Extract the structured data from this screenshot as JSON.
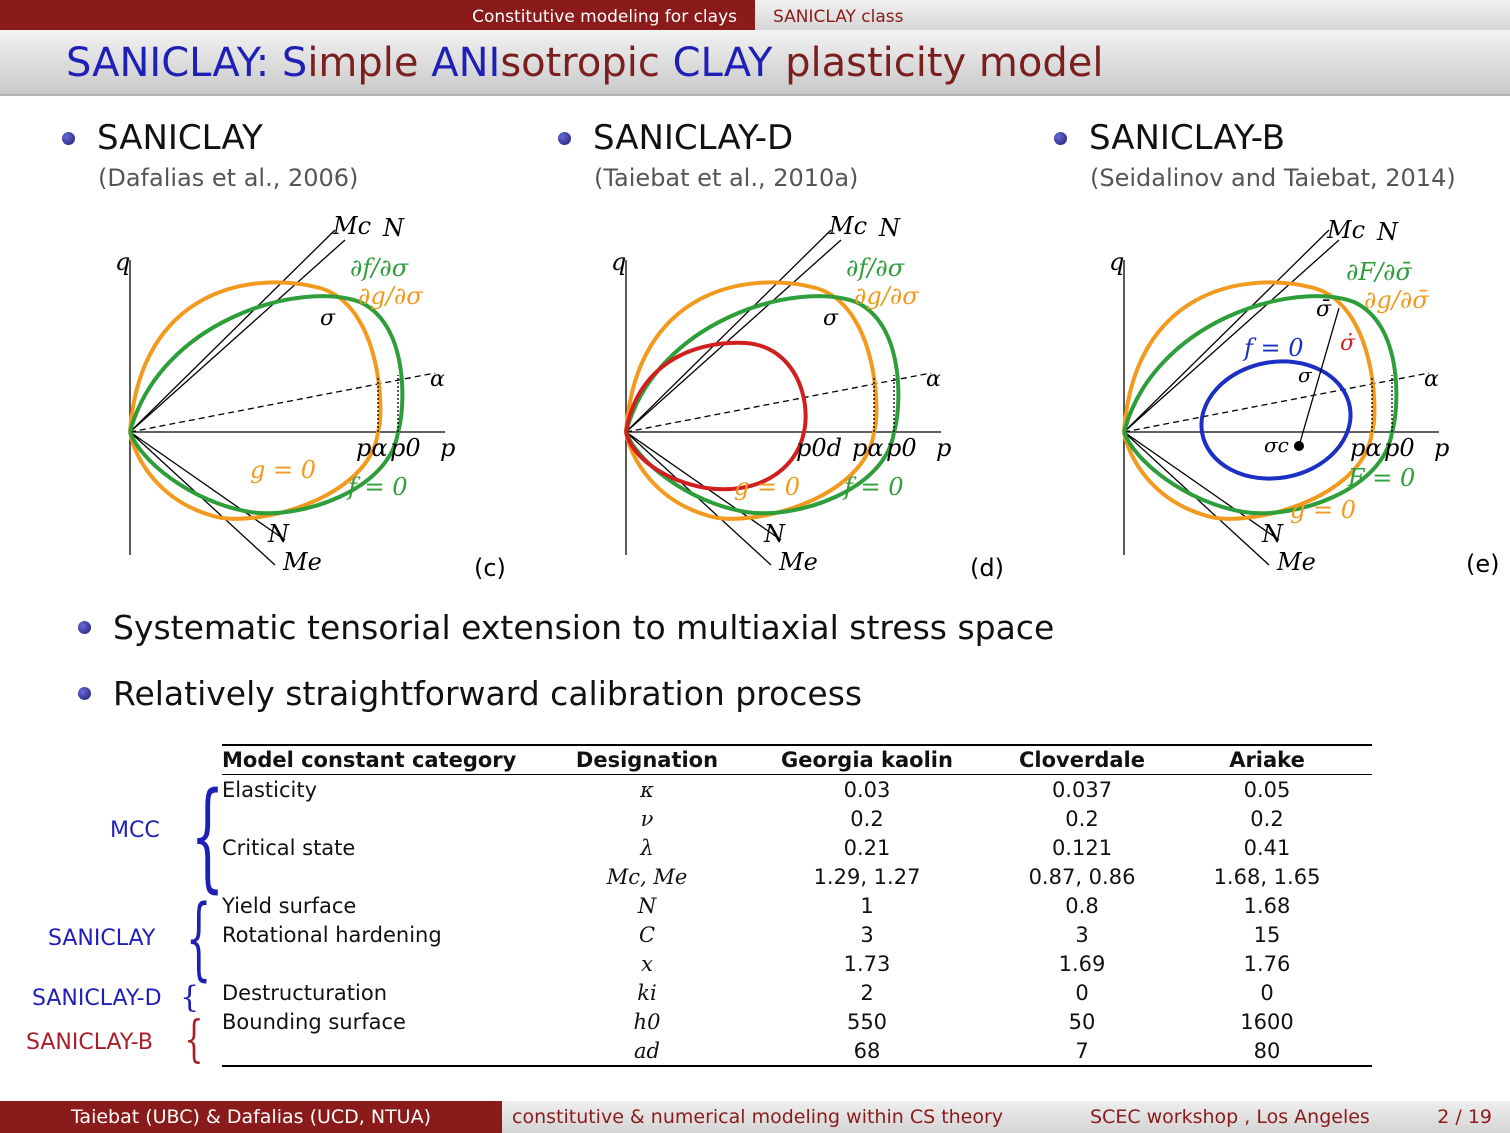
{
  "header": {
    "section": "Constitutive modeling for clays",
    "subsection": "SANICLAY class"
  },
  "title": {
    "part1": "SANICLAY: ",
    "part2": "S",
    "part3": "imple ",
    "part4": "ANI",
    "part5": "sotropic ",
    "part6": "CLAY",
    "part7": " plasticity model"
  },
  "columns": [
    {
      "name": "SANICLAY",
      "cite": "(Dafalias et al., 2006)",
      "label": "(c)"
    },
    {
      "name": "SANICLAY-D",
      "cite": "(Taiebat et al., 2010a)",
      "label": "(d)"
    },
    {
      "name": "SANICLAY-B",
      "cite": "(Seidalinov and Taiebat, 2014)",
      "label": "(e)"
    }
  ],
  "fig": {
    "q": "q",
    "p": "p",
    "Mc": "Mc",
    "N": "N",
    "Me": "Me",
    "alpha": "α",
    "sigma": "σ",
    "df": "∂f/∂σ",
    "dg": "∂g/∂σ",
    "p0": "p0",
    "pa": "pα",
    "g0": "g = 0",
    "f0": "f = 0",
    "p0d": "p0d",
    "dF": "∂F/∂σ̄",
    "dgbar": "∂g/∂σ̄",
    "sigbar": "σ̄",
    "F0": "F = 0",
    "sigc": "σc",
    "sigdot": "σ̇"
  },
  "bullets": [
    "Systematic tensorial extension to multiaxial stress space",
    "Relatively straightforward calibration process"
  ],
  "table": {
    "headers": [
      "Model constant category",
      "Designation",
      "Georgia kaolin",
      "Cloverdale",
      "Ariake"
    ],
    "rows": [
      [
        "Elasticity",
        "κ",
        "0.03",
        "0.037",
        "0.05"
      ],
      [
        "",
        "ν",
        "0.2",
        "0.2",
        "0.2"
      ],
      [
        "Critical state",
        "λ",
        "0.21",
        "0.121",
        "0.41"
      ],
      [
        "",
        "Mc, Me",
        "1.29, 1.27",
        "0.87, 0.86",
        "1.68, 1.65"
      ],
      [
        "Yield surface",
        "N",
        "1",
        "0.8",
        "1.68"
      ],
      [
        "Rotational hardening",
        "C",
        "3",
        "3",
        "15"
      ],
      [
        "",
        "x",
        "1.73",
        "1.69",
        "1.76"
      ],
      [
        "Destructuration",
        "ki",
        "2",
        "0",
        "0"
      ],
      [
        "Bounding surface",
        "h0",
        "550",
        "50",
        "1600"
      ],
      [
        "",
        "ad",
        "68",
        "7",
        "80"
      ]
    ],
    "groups": [
      "MCC",
      "SANICLAY",
      "SANICLAY-D",
      "SANICLAY-B"
    ]
  },
  "footer": {
    "authors": "Taiebat (UBC) & Dafalias (UCD, NTUA)",
    "topic": "constitutive & numerical modeling within CS theory",
    "event": "SCEC workshop , Los Angeles",
    "page": "2 / 19"
  },
  "colors": {
    "maroon": "#8b1a1a",
    "blue": "#1f1fb8",
    "orange": "#f29a1e",
    "green": "#2e9e3a",
    "red": "#d11f1f",
    "navy": "#1a2fc4"
  }
}
